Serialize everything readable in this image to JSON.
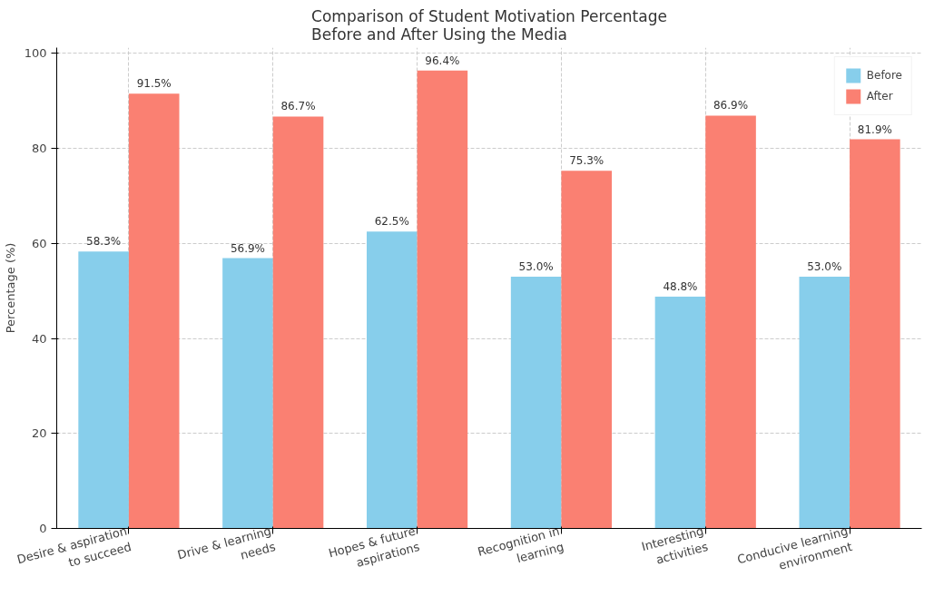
{
  "chart_data": {
    "type": "bar",
    "title": "Comparison of Student Motivation Percentage\nBefore and After Using the Media",
    "ylabel": "Percentage (%)",
    "categories": [
      "Desire & aspiration\nto succeed",
      "Drive & learning\nneeds",
      "Hopes & future\naspirations",
      "Recognition in\nlearning",
      "Interesting\nactivities",
      "Conducive learning\nenvironment"
    ],
    "series": [
      {
        "name": "Before",
        "color": "#87ceeb",
        "values": [
          58.3,
          56.9,
          62.5,
          53.0,
          48.8,
          53.0
        ],
        "value_labels": [
          "58.3%",
          "56.9%",
          "62.5%",
          "53.0%",
          "48.8%",
          "53.0%"
        ]
      },
      {
        "name": "After",
        "color": "#fa8072",
        "values": [
          91.5,
          86.7,
          96.4,
          75.3,
          86.9,
          81.9
        ],
        "value_labels": [
          "91.5%",
          "86.7%",
          "96.4%",
          "75.3%",
          "86.9%",
          "81.9%"
        ]
      }
    ],
    "ylim": [
      0,
      101.2
    ],
    "yticks": [
      0,
      20,
      40,
      60,
      80,
      100
    ],
    "grid": true,
    "legend": "top right"
  }
}
